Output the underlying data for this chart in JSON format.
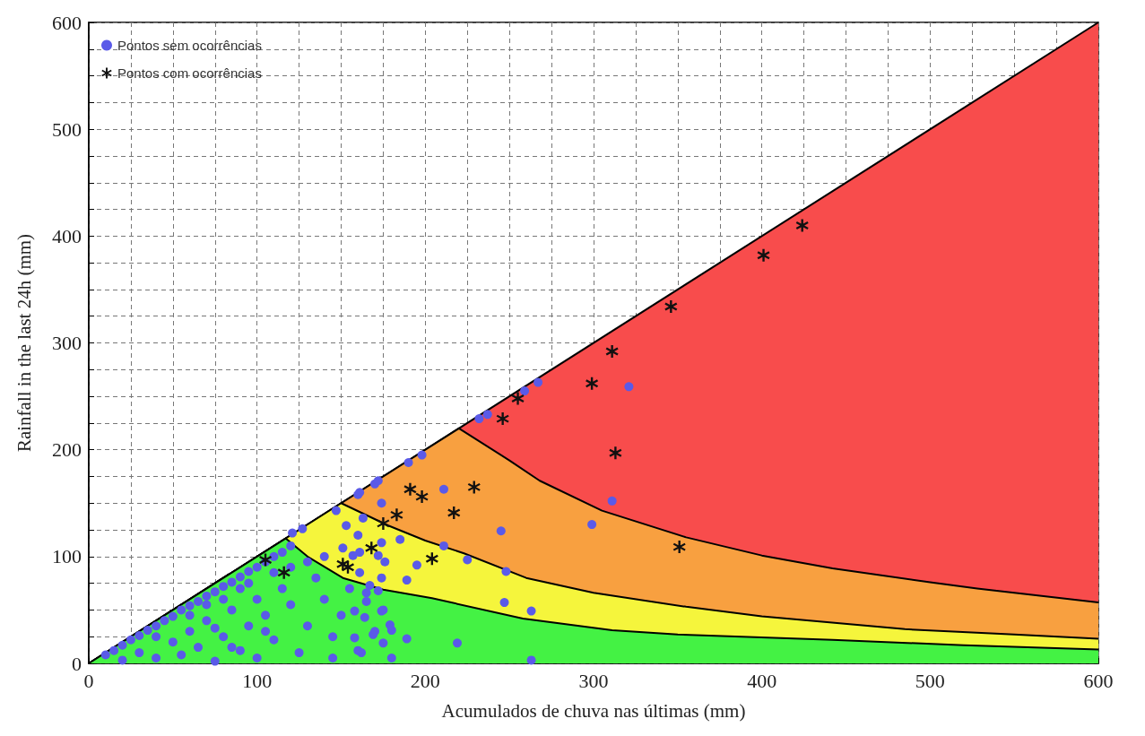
{
  "chart_data": {
    "type": "scatter",
    "xlabel": "Acumulados de chuva nas últimas (mm)",
    "ylabel": "Rainfall in the last 24h (mm)",
    "xlim": [
      0,
      600
    ],
    "ylim": [
      0,
      600
    ],
    "xticks": [
      0,
      {
        "value": 25,
        "label": null
      },
      {
        "value": 50,
        "label": null
      },
      {
        "value": 75,
        "label": null
      },
      100,
      {
        "value": 125,
        "label": null
      },
      {
        "value": 150,
        "label": null
      },
      {
        "value": 175,
        "label": null
      },
      200,
      {
        "value": 225,
        "label": null
      },
      {
        "value": 250,
        "label": null
      },
      {
        "value": 275,
        "label": null
      },
      300,
      {
        "value": 325,
        "label": null
      },
      {
        "value": 350,
        "label": null
      },
      {
        "value": 375,
        "label": null
      },
      400,
      {
        "value": 425,
        "label": null
      },
      {
        "value": 450,
        "label": null
      },
      {
        "value": 475,
        "label": null
      },
      500,
      {
        "value": 525,
        "label": null
      },
      {
        "value": 550,
        "label": null
      },
      {
        "value": 575,
        "label": null
      },
      600
    ],
    "yticks": [
      0,
      {
        "value": 25,
        "label": null
      },
      {
        "value": 50,
        "label": null
      },
      {
        "value": 75,
        "label": null
      },
      100,
      {
        "value": 125,
        "label": null
      },
      {
        "value": 150,
        "label": null
      },
      {
        "value": 175,
        "label": null
      },
      200,
      {
        "value": 225,
        "label": null
      },
      {
        "value": 250,
        "label": null
      },
      {
        "value": 275,
        "label": null
      },
      300,
      {
        "value": 325,
        "label": null
      },
      {
        "value": 350,
        "label": null
      },
      {
        "value": 375,
        "label": null
      },
      400,
      {
        "value": 425,
        "label": null
      },
      {
        "value": 450,
        "label": null
      },
      {
        "value": 475,
        "label": null
      },
      500,
      {
        "value": 525,
        "label": null
      },
      {
        "value": 550,
        "label": null
      },
      {
        "value": 575,
        "label": null
      },
      600
    ],
    "grid": true,
    "legend": "top left",
    "series": [
      {
        "type": "area",
        "color": "#f84c4c",
        "marker": "none",
        "x": [
          0,
          600
        ],
        "values": [
          0,
          600
        ]
      },
      {
        "type": "area",
        "color": "#f8a040",
        "marker": "none",
        "x": [
          0,
          220,
          250,
          268,
          305,
          355,
          400,
          442,
          500,
          528,
          600
        ],
        "values": [
          0,
          220,
          190,
          171,
          143,
          118,
          101,
          89,
          76,
          70,
          57
        ]
      },
      {
        "type": "area",
        "color": "#f5f53c",
        "marker": "none",
        "x": [
          0,
          150,
          178,
          200,
          223,
          260,
          300,
          355,
          400,
          485,
          550,
          600
        ],
        "values": [
          0,
          150,
          129,
          115,
          103,
          80,
          66,
          53,
          44,
          32,
          27,
          23
        ]
      },
      {
        "type": "area",
        "color": "#44f244",
        "marker": "none",
        "x": [
          0,
          117,
          130,
          151,
          175,
          204,
          258,
          311,
          350,
          442,
          520,
          600
        ],
        "values": [
          0,
          117,
          100,
          80,
          69,
          61,
          42,
          31,
          27,
          22,
          17,
          13
        ]
      },
      {
        "name": "Pontos sem ocorrências",
        "color": "#5a5ae8",
        "marker": "circle",
        "x": [
          10,
          15,
          20,
          25,
          30,
          35,
          40,
          45,
          50,
          55,
          60,
          65,
          70,
          75,
          80,
          85,
          90,
          95,
          100,
          105,
          110,
          115,
          120,
          121,
          127,
          147,
          160,
          170,
          190,
          20,
          30,
          40,
          50,
          55,
          60,
          65,
          70,
          75,
          80,
          85,
          90,
          95,
          100,
          100,
          105,
          110,
          115,
          120,
          125,
          130,
          135,
          140,
          145,
          150,
          155,
          160,
          165,
          170,
          175,
          40,
          60,
          80,
          90,
          70,
          110,
          95,
          120,
          130,
          140,
          145,
          105,
          85,
          75,
          232,
          237,
          259,
          267,
          321,
          311,
          299,
          245,
          225,
          248,
          198,
          172,
          161,
          174,
          211,
          163,
          153,
          160,
          185,
          174,
          211,
          151,
          157,
          161,
          172,
          176,
          195,
          161,
          174,
          189,
          167,
          165,
          172,
          247,
          263,
          158,
          174,
          164,
          179,
          180,
          158,
          169,
          189,
          175,
          219,
          162,
          180,
          263
        ],
        "values": [
          8,
          12,
          17,
          22,
          26,
          31,
          35,
          40,
          44,
          50,
          54,
          58,
          63,
          67,
          72,
          76,
          81,
          86,
          90,
          95,
          100,
          104,
          110,
          122,
          126,
          143,
          158,
          168,
          188,
          3,
          10,
          5,
          20,
          8,
          30,
          15,
          40,
          2,
          25,
          50,
          12,
          35,
          60,
          5,
          45,
          22,
          70,
          55,
          10,
          35,
          80,
          60,
          25,
          45,
          70,
          12,
          58,
          30,
          50,
          25,
          45,
          60,
          70,
          55,
          85,
          75,
          90,
          95,
          100,
          5,
          30,
          15,
          33,
          229,
          233,
          255,
          263,
          259,
          152,
          130,
          124,
          97,
          86,
          195,
          171,
          160,
          150,
          163,
          136,
          129,
          120,
          116,
          113,
          110,
          108,
          101,
          104,
          101,
          95,
          92,
          85,
          80,
          78,
          73,
          66,
          68,
          57,
          49,
          49,
          49,
          43,
          36,
          31,
          24,
          27,
          23,
          19,
          19,
          10,
          5,
          3
        ]
      },
      {
        "name": "Pontos com ocorrências",
        "color": "#111111",
        "marker": "cross",
        "x": [
          424,
          401,
          346,
          311,
          299,
          255,
          246,
          313,
          229,
          217,
          351,
          191,
          198,
          183,
          175,
          168,
          204,
          154,
          151,
          105,
          116
        ],
        "values": [
          410,
          382,
          334,
          292,
          262,
          248,
          229,
          197,
          165,
          141,
          109,
          163,
          156,
          139,
          131,
          108,
          98,
          90,
          93,
          97,
          85
        ]
      }
    ]
  }
}
